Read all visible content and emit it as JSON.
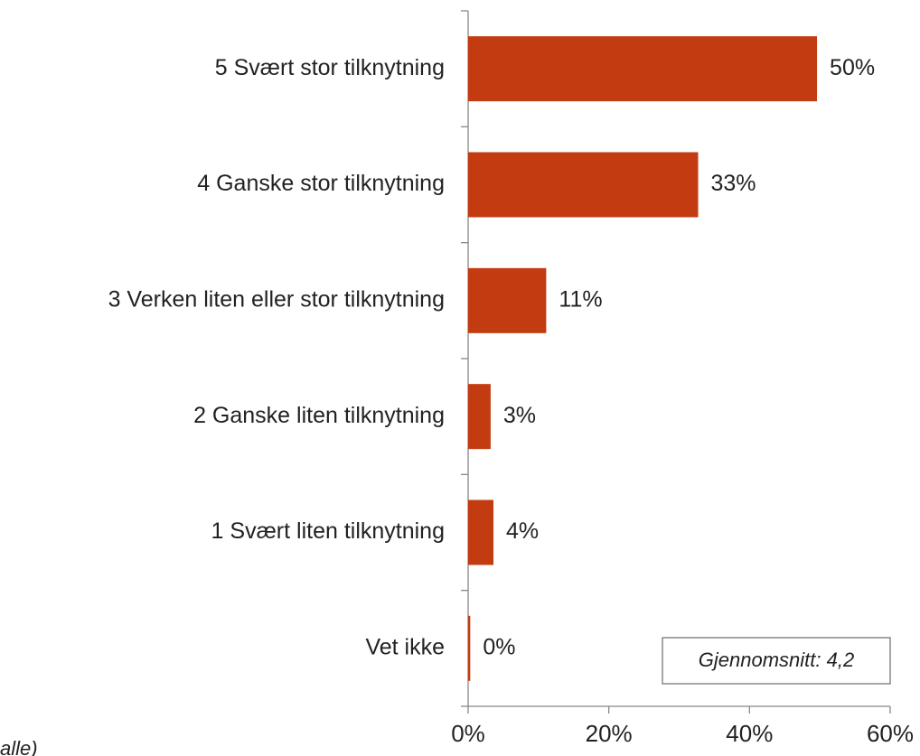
{
  "chart_data": {
    "type": "bar",
    "orientation": "horizontal",
    "categories": [
      "5 Svært stor tilknytning",
      "4 Ganske stor tilknytning",
      "3 Verken liten eller stor tilknytning",
      "2 Ganske liten tilknytning",
      "1 Svært liten tilknytning",
      "Vet ikke"
    ],
    "values": [
      49.6,
      32.7,
      11.1,
      3.2,
      3.6,
      0.3
    ],
    "value_labels": [
      "50%",
      "33%",
      "11%",
      "3%",
      "4%",
      "0%"
    ],
    "color": "#c33b10",
    "xlim": [
      0,
      60
    ],
    "xticks": [
      {
        "value": 0,
        "label": "0%"
      },
      {
        "value": 20,
        "label": "20%"
      },
      {
        "value": 40,
        "label": "40%"
      },
      {
        "value": 60,
        "label": "60%"
      }
    ],
    "annotation": "Gjennomsnitt: 4,2",
    "note": "alle)"
  }
}
